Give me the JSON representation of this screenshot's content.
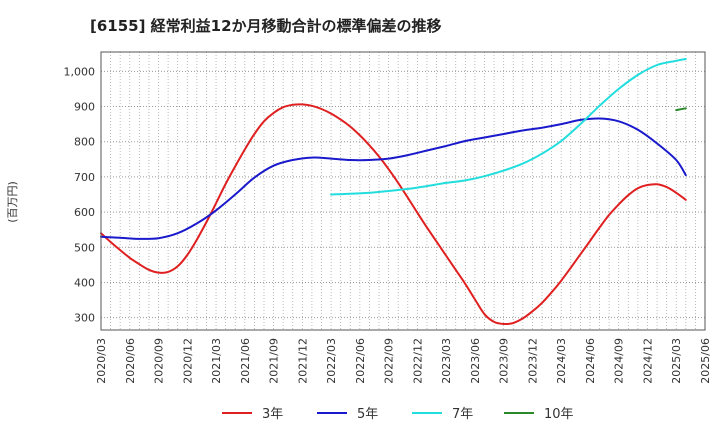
{
  "chart_data": {
    "type": "line",
    "title": "[6155]  経常利益12か月移動合計の標準偏差の推移",
    "ylabel": "(百万円)",
    "xlabel": "",
    "ylim": [
      265,
      1055
    ],
    "yticks": [
      300,
      400,
      500,
      600,
      700,
      800,
      900,
      1000
    ],
    "ytick_labels": [
      "300",
      "400",
      "500",
      "600",
      "700",
      "800",
      "900",
      "1,000"
    ],
    "x_range": [
      "2020-03",
      "2025-06"
    ],
    "x_tick_labels": [
      "2020/03",
      "2020/06",
      "2020/09",
      "2020/12",
      "2021/03",
      "2021/06",
      "2021/09",
      "2021/12",
      "2022/03",
      "2022/06",
      "2022/09",
      "2022/12",
      "2023/03",
      "2023/06",
      "2023/09",
      "2023/12",
      "2024/03",
      "2024/06",
      "2024/09",
      "2024/12",
      "2025/03",
      "2025/06"
    ],
    "grid": true,
    "legend_position": "bottom",
    "series": [
      {
        "name": "3年",
        "color": "#e02020",
        "points": [
          [
            "2020-03",
            540
          ],
          [
            "2020-04",
            515
          ],
          [
            "2020-05",
            492
          ],
          [
            "2020-06",
            470
          ],
          [
            "2020-07",
            452
          ],
          [
            "2020-08",
            436
          ],
          [
            "2020-09",
            428
          ],
          [
            "2020-10",
            430
          ],
          [
            "2020-11",
            446
          ],
          [
            "2020-12",
            478
          ],
          [
            "2021-01",
            522
          ],
          [
            "2021-02",
            572
          ],
          [
            "2021-03",
            625
          ],
          [
            "2021-04",
            680
          ],
          [
            "2021-05",
            730
          ],
          [
            "2021-06",
            778
          ],
          [
            "2021-07",
            822
          ],
          [
            "2021-08",
            858
          ],
          [
            "2021-09",
            882
          ],
          [
            "2021-10",
            898
          ],
          [
            "2021-11",
            905
          ],
          [
            "2021-12",
            906
          ],
          [
            "2022-01",
            902
          ],
          [
            "2022-02",
            893
          ],
          [
            "2022-03",
            880
          ],
          [
            "2022-04",
            863
          ],
          [
            "2022-05",
            843
          ],
          [
            "2022-06",
            818
          ],
          [
            "2022-07",
            790
          ],
          [
            "2022-08",
            758
          ],
          [
            "2022-09",
            722
          ],
          [
            "2022-10",
            683
          ],
          [
            "2022-11",
            641
          ],
          [
            "2022-12",
            598
          ],
          [
            "2023-01",
            556
          ],
          [
            "2023-02",
            516
          ],
          [
            "2023-03",
            476
          ],
          [
            "2023-04",
            436
          ],
          [
            "2023-05",
            396
          ],
          [
            "2023-06",
            352
          ],
          [
            "2023-07",
            310
          ],
          [
            "2023-08",
            288
          ],
          [
            "2023-09",
            282
          ],
          [
            "2023-10",
            285
          ],
          [
            "2023-11",
            298
          ],
          [
            "2023-12",
            318
          ],
          [
            "2024-01",
            342
          ],
          [
            "2024-02",
            372
          ],
          [
            "2024-03",
            405
          ],
          [
            "2024-04",
            442
          ],
          [
            "2024-05",
            480
          ],
          [
            "2024-06",
            518
          ],
          [
            "2024-07",
            556
          ],
          [
            "2024-08",
            592
          ],
          [
            "2024-09",
            622
          ],
          [
            "2024-10",
            648
          ],
          [
            "2024-11",
            668
          ],
          [
            "2024-12",
            677
          ],
          [
            "2025-01",
            679
          ],
          [
            "2025-02",
            671
          ],
          [
            "2025-03",
            655
          ],
          [
            "2025-04",
            635
          ]
        ]
      },
      {
        "name": "5年",
        "color": "#1a1acc",
        "points": [
          [
            "2020-03",
            530
          ],
          [
            "2020-05",
            527
          ],
          [
            "2020-07",
            524
          ],
          [
            "2020-09",
            526
          ],
          [
            "2020-11",
            540
          ],
          [
            "2021-01",
            568
          ],
          [
            "2021-03",
            605
          ],
          [
            "2021-05",
            650
          ],
          [
            "2021-07",
            698
          ],
          [
            "2021-09",
            732
          ],
          [
            "2021-11",
            748
          ],
          [
            "2022-01",
            755
          ],
          [
            "2022-03",
            752
          ],
          [
            "2022-05",
            748
          ],
          [
            "2022-07",
            748
          ],
          [
            "2022-09",
            752
          ],
          [
            "2022-11",
            762
          ],
          [
            "2023-01",
            775
          ],
          [
            "2023-03",
            788
          ],
          [
            "2023-05",
            802
          ],
          [
            "2023-07",
            812
          ],
          [
            "2023-09",
            822
          ],
          [
            "2023-11",
            832
          ],
          [
            "2024-01",
            840
          ],
          [
            "2024-03",
            850
          ],
          [
            "2024-05",
            862
          ],
          [
            "2024-07",
            866
          ],
          [
            "2024-09",
            858
          ],
          [
            "2024-11",
            834
          ],
          [
            "2025-01",
            795
          ],
          [
            "2025-03",
            748
          ],
          [
            "2025-04",
            705
          ]
        ]
      },
      {
        "name": "7年",
        "color": "#22dddd",
        "points": [
          [
            "2022-03",
            650
          ],
          [
            "2022-05",
            652
          ],
          [
            "2022-07",
            655
          ],
          [
            "2022-09",
            660
          ],
          [
            "2022-11",
            666
          ],
          [
            "2023-01",
            674
          ],
          [
            "2023-03",
            683
          ],
          [
            "2023-05",
            690
          ],
          [
            "2023-07",
            702
          ],
          [
            "2023-09",
            718
          ],
          [
            "2023-11",
            738
          ],
          [
            "2024-01",
            766
          ],
          [
            "2024-03",
            802
          ],
          [
            "2024-05",
            850
          ],
          [
            "2024-07",
            902
          ],
          [
            "2024-09",
            950
          ],
          [
            "2024-11",
            990
          ],
          [
            "2025-01",
            1018
          ],
          [
            "2025-03",
            1030
          ],
          [
            "2025-04",
            1035
          ]
        ]
      },
      {
        "name": "10年",
        "color": "#2a8a2a",
        "points": [
          [
            "2025-03",
            890
          ],
          [
            "2025-04",
            895
          ]
        ]
      }
    ]
  }
}
